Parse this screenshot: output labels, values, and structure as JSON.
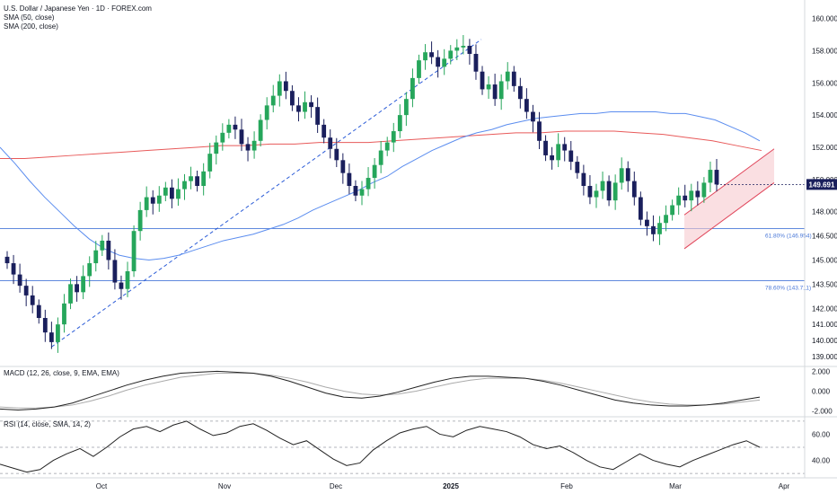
{
  "title": "U.S. Dollar / Japanese Yen · 1D · FOREX.com",
  "indicators": {
    "sma50_label": "SMA (50, close)",
    "sma200_label": "SMA (200, close)",
    "macd_label": "MACD (12, 26, close, 9, EMA, EMA)",
    "rsi_label": "RSI (14, close, SMA, 14, 2)"
  },
  "colors": {
    "up": "#26a65b",
    "down": "#1a1f5c",
    "sma50": "#5b8def",
    "sma200": "#e85a5a",
    "fib": "#4a78d8",
    "channel": "#e0455a",
    "channel_fill": "#f7c9cf",
    "trend": "#2a5bd7",
    "macd": "#222222",
    "signal": "#aaaaaa",
    "rsi": "#222222",
    "price_tag": "#1a1f5c"
  },
  "price": {
    "last": "149.691"
  },
  "chart_data": [
    {
      "type": "line",
      "name": "price",
      "x_ticks": [
        "Oct",
        "Nov",
        "Dec",
        "2025",
        "Feb",
        "Mar",
        "Apr"
      ],
      "y_ticks": [
        "160.000",
        "158.000",
        "156.000",
        "154.000",
        "152.000",
        "150.000",
        "148.000",
        "146.500",
        "145.000",
        "143.500",
        "142.000",
        "141.000",
        "140.000",
        "139.000"
      ],
      "ylim": [
        138.5,
        160.7
      ],
      "closes": [
        144.8,
        144.1,
        143.4,
        142.8,
        142.2,
        141.4,
        140.5,
        139.9,
        141.0,
        142.3,
        143.5,
        143.0,
        144.0,
        144.8,
        145.6,
        146.2,
        145.0,
        143.6,
        143.2,
        144.3,
        146.8,
        148.1,
        148.9,
        148.5,
        149.0,
        149.5,
        148.8,
        149.4,
        149.9,
        150.2,
        149.6,
        150.5,
        151.6,
        152.3,
        152.9,
        153.4,
        153.1,
        152.2,
        151.8,
        152.4,
        153.7,
        154.6,
        155.2,
        156.1,
        155.5,
        154.6,
        154.2,
        154.8,
        154.5,
        153.4,
        152.6,
        151.9,
        151.2,
        150.4,
        149.6,
        149.0,
        149.4,
        150.1,
        150.9,
        151.8,
        152.3,
        153.0,
        154.0,
        155.0,
        156.3,
        157.4,
        157.9,
        157.6,
        157.0,
        157.5,
        158.0,
        158.2,
        158.3,
        157.8,
        156.7,
        155.6,
        155.9,
        155.0,
        156.1,
        156.7,
        155.8,
        155.0,
        154.2,
        153.6,
        152.4,
        151.5,
        151.2,
        152.2,
        151.8,
        151.1,
        150.4,
        149.6,
        148.9,
        149.3,
        149.9,
        148.7,
        149.8,
        150.7,
        149.9,
        148.9,
        147.5,
        147.1,
        146.6,
        147.3,
        147.8,
        148.4,
        149.0,
        148.7,
        149.3,
        148.9,
        149.8,
        150.6,
        149.691
      ],
      "annotations": [
        {
          "label": "61.80% (146.954)",
          "value": 146.954
        },
        {
          "label": "78.60% (143.711)",
          "value": 143.711
        }
      ],
      "channel": {
        "lower_start": 145.7,
        "lower_end": 149.8,
        "upper_start": 147.8,
        "upper_end": 151.9
      },
      "trendline": {
        "start": 139.6,
        "end": 158.7
      },
      "sma50": [
        152.0,
        151.0,
        149.9,
        148.9,
        148.0,
        147.1,
        146.3,
        145.7,
        145.3,
        145.1,
        145.0,
        145.1,
        145.3,
        145.6,
        145.9,
        146.2,
        146.4,
        146.6,
        146.9,
        147.2,
        147.6,
        148.1,
        148.5,
        148.9,
        149.3,
        149.8,
        150.2,
        150.8,
        151.3,
        151.8,
        152.2,
        152.6,
        152.9,
        153.1,
        153.4,
        153.6,
        153.8,
        153.9,
        154.0,
        154.1,
        154.1,
        154.2,
        154.2,
        154.2,
        154.2,
        154.1,
        154.1,
        153.9,
        153.7,
        153.3,
        152.9,
        152.4
      ],
      "sma200": [
        151.3,
        151.3,
        151.4,
        151.5,
        151.6,
        151.7,
        151.8,
        151.9,
        152.0,
        152.1,
        152.1,
        152.2,
        152.2,
        152.3,
        152.3,
        152.3,
        152.4,
        152.5,
        152.6,
        152.7,
        152.8,
        152.9,
        152.9,
        153.0,
        153.0,
        153.0,
        152.9,
        152.8,
        152.6,
        152.4,
        152.1,
        151.8
      ]
    },
    {
      "type": "line",
      "name": "MACD",
      "y_ticks": [
        "2.000",
        "0.000",
        "-2.000"
      ],
      "ylim": [
        -2.4,
        2.3
      ],
      "macd": [
        -1.8,
        -1.9,
        -1.8,
        -1.6,
        -1.2,
        -0.6,
        0.0,
        0.6,
        1.1,
        1.5,
        1.8,
        1.9,
        2.0,
        1.9,
        1.8,
        1.5,
        1.0,
        0.4,
        -0.2,
        -0.6,
        -0.7,
        -0.5,
        -0.1,
        0.4,
        0.9,
        1.3,
        1.5,
        1.5,
        1.4,
        1.3,
        1.0,
        0.6,
        0.1,
        -0.4,
        -0.9,
        -1.2,
        -1.4,
        -1.5,
        -1.5,
        -1.4,
        -1.2,
        -0.9,
        -0.6
      ],
      "signal": [
        -1.6,
        -1.7,
        -1.7,
        -1.6,
        -1.4,
        -1.0,
        -0.5,
        0.1,
        0.6,
        1.0,
        1.4,
        1.6,
        1.8,
        1.8,
        1.8,
        1.6,
        1.3,
        0.9,
        0.4,
        0.0,
        -0.3,
        -0.4,
        -0.3,
        0.0,
        0.4,
        0.8,
        1.1,
        1.3,
        1.3,
        1.3,
        1.1,
        0.8,
        0.4,
        0.0,
        -0.4,
        -0.8,
        -1.1,
        -1.3,
        -1.4,
        -1.4,
        -1.3,
        -1.1,
        -0.9
      ]
    },
    {
      "type": "line",
      "name": "RSI",
      "y_ticks": [
        "60.00",
        "40.00"
      ],
      "ylim": [
        28,
        72
      ],
      "guides": [
        70,
        50,
        30
      ],
      "rsi": [
        37,
        34,
        31,
        33,
        40,
        45,
        49,
        43,
        50,
        58,
        64,
        66,
        62,
        67,
        70,
        64,
        59,
        61,
        66,
        68,
        63,
        57,
        52,
        55,
        48,
        41,
        36,
        38,
        48,
        55,
        61,
        64,
        66,
        60,
        58,
        63,
        66,
        64,
        62,
        58,
        52,
        49,
        51,
        46,
        40,
        35,
        33,
        39,
        45,
        40,
        37,
        35,
        40,
        44,
        48,
        52,
        55,
        50
      ]
    }
  ]
}
